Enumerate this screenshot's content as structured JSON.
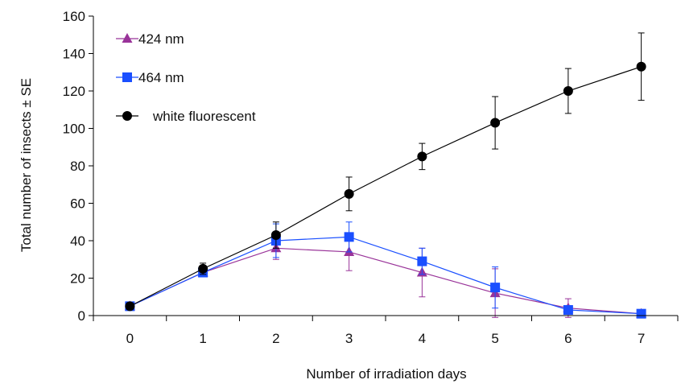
{
  "chart_data": {
    "type": "line",
    "title": "",
    "xlabel": "Number of irradiation days",
    "ylabel": "Total number of insects ± SE",
    "xlim": [
      -0.5,
      7.5
    ],
    "ylim": [
      0,
      160
    ],
    "x_ticks": [
      0,
      1,
      2,
      3,
      4,
      5,
      6,
      7
    ],
    "y_ticks": [
      0,
      20,
      40,
      60,
      80,
      100,
      120,
      140,
      160
    ],
    "grid": false,
    "legend_position": "top-left",
    "series": [
      {
        "name": "424 nm",
        "marker": "triangle",
        "color": "#993399",
        "x": [
          0,
          1,
          2,
          3,
          4,
          5,
          6,
          7
        ],
        "y": [
          5,
          23,
          36,
          34,
          23,
          12,
          4,
          1
        ],
        "err": [
          0,
          2,
          6,
          10,
          13,
          13,
          5,
          0
        ]
      },
      {
        "name": "464 nm",
        "marker": "square",
        "color": "#1a4fff",
        "x": [
          0,
          1,
          2,
          3,
          4,
          5,
          6,
          7
        ],
        "y": [
          5,
          23,
          40,
          42,
          29,
          15,
          3,
          1
        ],
        "err": [
          0,
          2,
          9,
          8,
          7,
          11,
          2,
          0
        ]
      },
      {
        "name": "white fluorescent",
        "marker": "circle",
        "color": "#000000",
        "x": [
          0,
          1,
          2,
          3,
          4,
          5,
          6,
          7
        ],
        "y": [
          5,
          25,
          43,
          65,
          85,
          103,
          120,
          133
        ],
        "err": [
          1,
          3,
          7,
          9,
          7,
          14,
          12,
          18
        ]
      }
    ]
  }
}
